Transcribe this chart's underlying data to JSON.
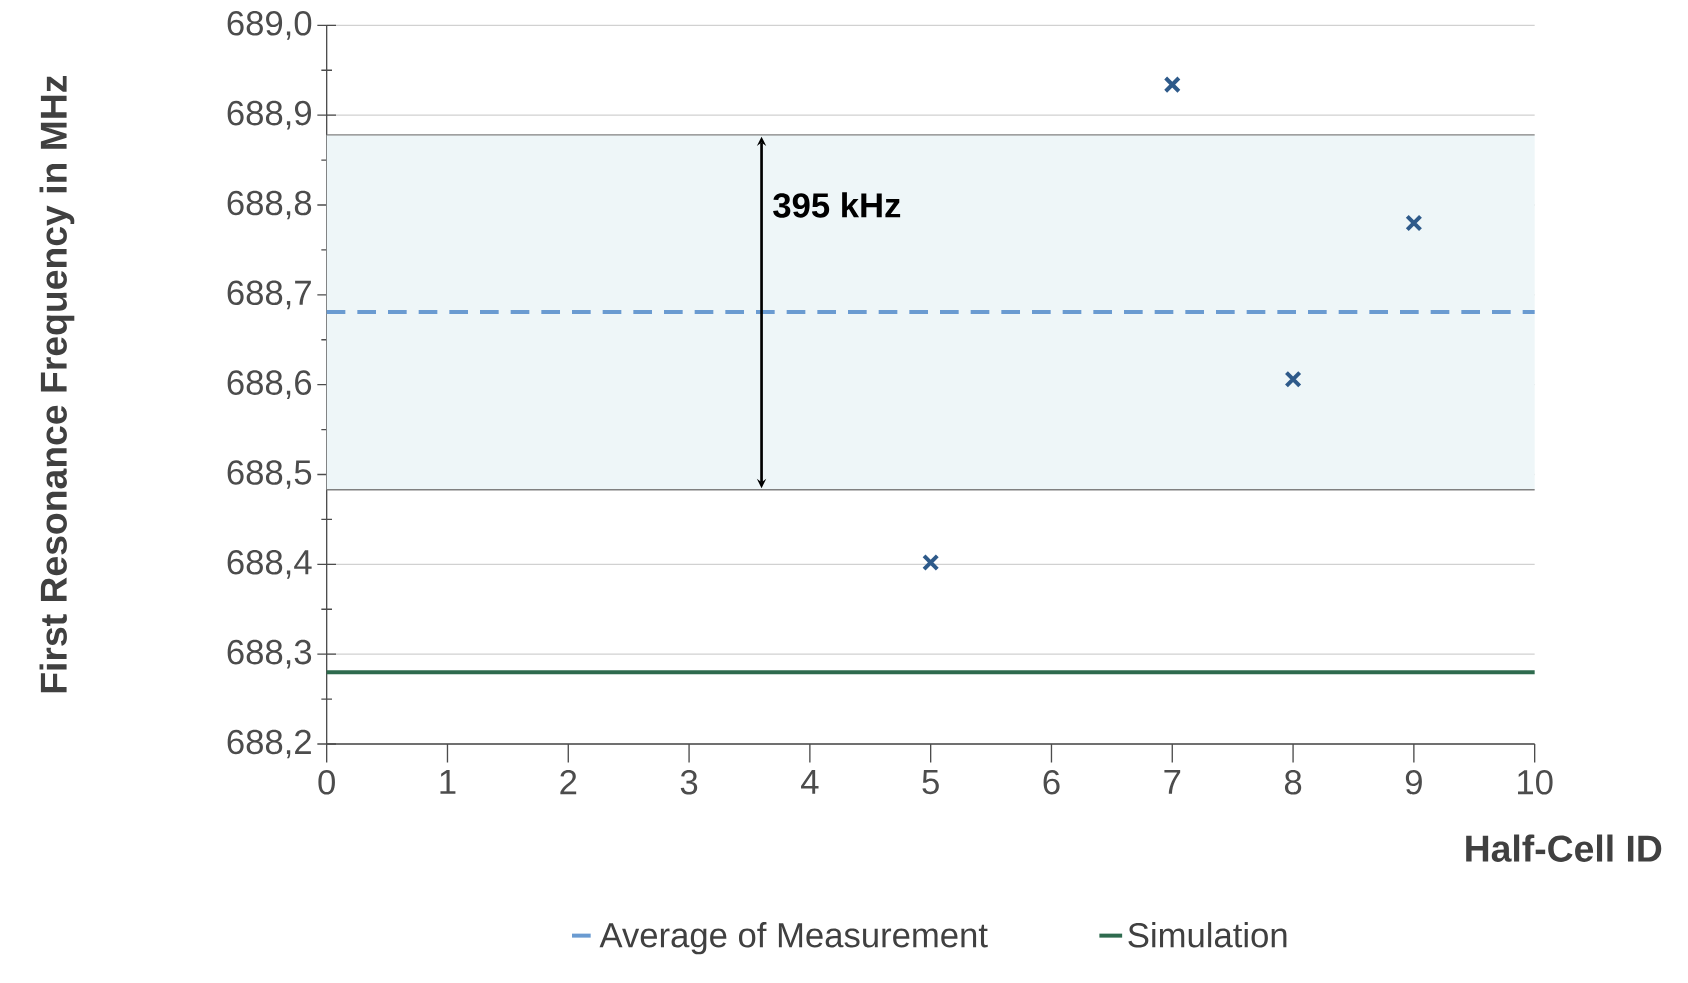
{
  "chart_data": {
    "type": "scatter",
    "xlabel": "Half-Cell ID",
    "ylabel": "First Resonance Frequency in MHz",
    "xlim": [
      0,
      10
    ],
    "xticks": [
      0,
      1,
      2,
      3,
      4,
      5,
      6,
      7,
      8,
      9,
      10
    ],
    "ylim": [
      688.2,
      689.0
    ],
    "yticks": [
      {
        "value": 688.2,
        "label": "688,2"
      },
      {
        "value": 688.3,
        "label": "688,3"
      },
      {
        "value": 688.4,
        "label": "688,4"
      },
      {
        "value": 688.5,
        "label": "688,5"
      },
      {
        "value": 688.6,
        "label": "688,6"
      },
      {
        "value": 688.7,
        "label": "688,7"
      },
      {
        "value": 688.8,
        "label": "688,8"
      },
      {
        "value": 688.9,
        "label": "688,9"
      },
      {
        "value": 689.0,
        "label": "689,0"
      }
    ],
    "grid": "y",
    "legend": "bottom",
    "bands": [
      {
        "axis": "y",
        "from": 688.483,
        "to": 688.878,
        "color": "#eef6f8"
      }
    ],
    "ref_lines": [
      {
        "axis": "y",
        "value": 688.483,
        "color": "#808080",
        "line_style": "solid"
      },
      {
        "axis": "y",
        "value": 688.878,
        "color": "#808080",
        "line_style": "solid"
      },
      {
        "axis": "y",
        "value": 688.681,
        "label": "Average of Measurement",
        "color": "#6a9bd1",
        "line_style": "dashed"
      },
      {
        "axis": "y",
        "value": 688.28,
        "label": "Simulation",
        "color": "#2e6b4e",
        "line_style": "solid"
      }
    ],
    "annotations": [
      "395 kHz"
    ],
    "series": [
      {
        "color": "#2e5a8a",
        "marker": "cross",
        "x": [
          5,
          7,
          8,
          9
        ],
        "values": [
          688.402,
          688.934,
          688.606,
          688.78
        ]
      }
    ]
  }
}
